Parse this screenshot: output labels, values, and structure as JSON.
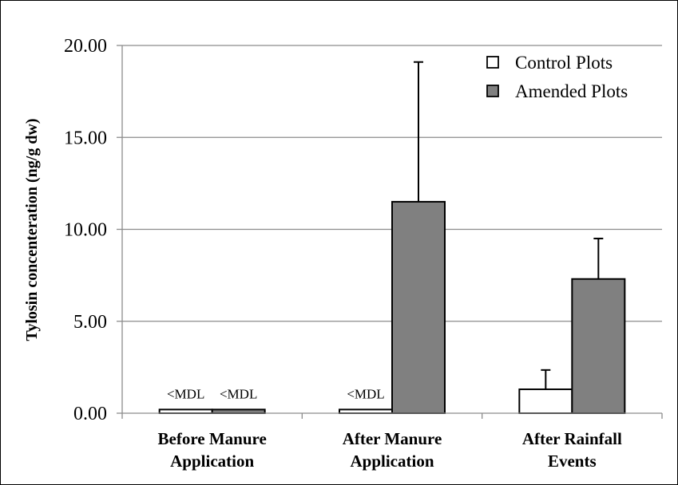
{
  "chart_data": {
    "type": "bar",
    "title": "",
    "xlabel": "",
    "ylabel": "Tylosin concenteration (ng/g dw)",
    "ylim": [
      0,
      20
    ],
    "yticks": [
      "0.00",
      "5.00",
      "10.00",
      "15.00",
      "20.00"
    ],
    "ytick_values": [
      0,
      5,
      10,
      15,
      20
    ],
    "grid": true,
    "legend_position": "top-right",
    "categories": [
      [
        "Before Manure",
        "Application"
      ],
      [
        "After Manure",
        "Application"
      ],
      [
        "After Rainfall",
        "Events"
      ]
    ],
    "series": [
      {
        "name": "Control Plots",
        "color": "#ffffff",
        "values": [
          0.2,
          0.2,
          1.3
        ],
        "errors": [
          0,
          0,
          1.05
        ],
        "annotations": [
          "<MDL",
          "<MDL",
          ""
        ]
      },
      {
        "name": "Amended Plots",
        "color": "#808080",
        "values": [
          0.2,
          11.5,
          7.3
        ],
        "errors": [
          0,
          7.6,
          2.2
        ],
        "annotations": [
          "<MDL",
          "",
          ""
        ]
      }
    ]
  }
}
